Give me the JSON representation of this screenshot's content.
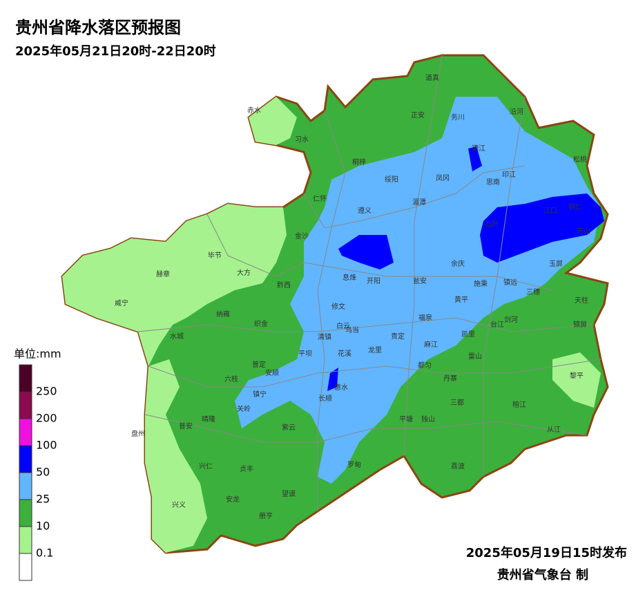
{
  "header": {
    "title": "贵州省降水落区预报图",
    "subtitle": "2025年05月21日20时-22日20时"
  },
  "legend": {
    "title": "单位:mm",
    "items": [
      {
        "label": "250",
        "color": "#4d0026"
      },
      {
        "label": "200",
        "color": "#8b0a50"
      },
      {
        "label": "100",
        "color": "#f010e0"
      },
      {
        "label": "50",
        "color": "#0000ff"
      },
      {
        "label": "25",
        "color": "#61b6ff"
      },
      {
        "label": "10",
        "color": "#3cb03c"
      },
      {
        "label": "0.1",
        "color": "#a6f28f"
      }
    ],
    "last_color": "#ffffff"
  },
  "counties": [
    "赤水",
    "习水",
    "道真",
    "正安",
    "务川",
    "沿河",
    "桐梓",
    "绥阳",
    "德江",
    "印江",
    "松桃",
    "思南",
    "凤冈",
    "仁怀",
    "湄潭",
    "遵义",
    "江口",
    "铜仁",
    "石阡",
    "万山",
    "金沙",
    "毕节",
    "大方",
    "余庆",
    "玉屏",
    "赫章",
    "息烽",
    "开阳",
    "瓮安",
    "施秉",
    "镇远",
    "黔西",
    "威宁",
    "三穗",
    "天柱",
    "黄平",
    "修文",
    "纳雍",
    "织金",
    "福泉",
    "台江",
    "剑河",
    "锦屏",
    "白云",
    "清镇",
    "乌当",
    "贵定",
    "凯里",
    "麻江",
    "水城",
    "平坝",
    "花溪",
    "龙里",
    "普定",
    "都匀",
    "雷山",
    "六枝",
    "安顺",
    "黎平",
    "丹寨",
    "惠水",
    "镇宁",
    "长顺",
    "三都",
    "关岭",
    "榕江",
    "盘州",
    "晴隆",
    "普安",
    "平塘",
    "独山",
    "紫云",
    "从江",
    "兴仁",
    "贞丰",
    "罗甸",
    "荔波",
    "兴义",
    "安龙",
    "望谟",
    "册亨"
  ],
  "footer": {
    "date": "2025年05月19日15时发布",
    "agency": "贵州省气象台 制"
  }
}
